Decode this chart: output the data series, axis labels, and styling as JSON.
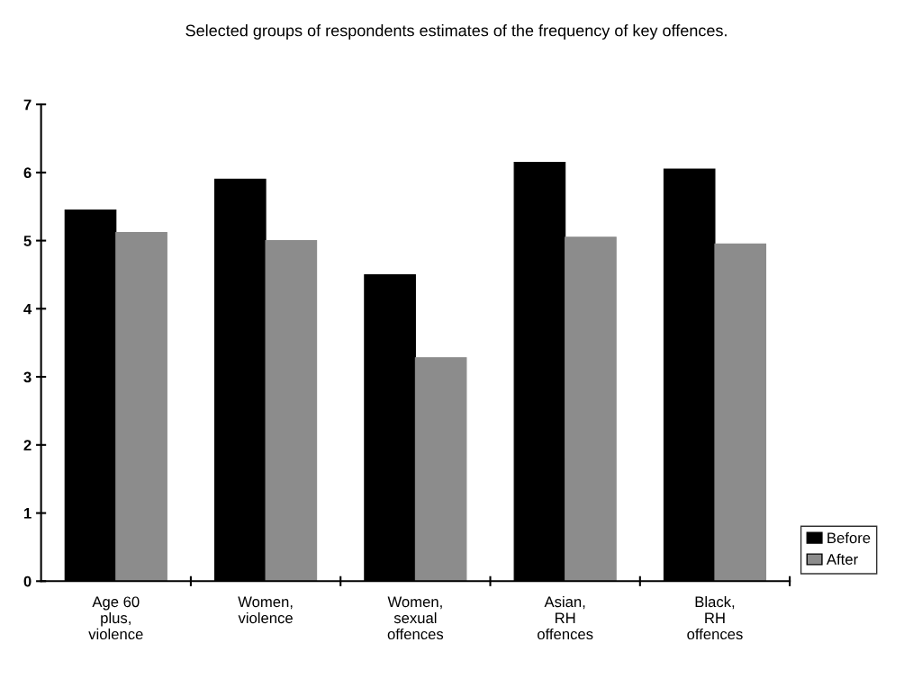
{
  "chart_data": {
    "type": "bar",
    "title": "Selected groups of respondents estimates of the frequency of key offences.",
    "categories": [
      "Age 60\nplus,\nviolence",
      "Women,\nviolence",
      "Women,\nsexual\noffences",
      "Asian,\nRH\noffences",
      "Black,\nRH\noffences"
    ],
    "series": [
      {
        "name": "Before",
        "color": "#000000",
        "values": [
          5.45,
          5.9,
          4.5,
          6.15,
          6.05
        ]
      },
      {
        "name": "After",
        "color": "#8c8c8c",
        "values": [
          5.12,
          5.0,
          3.28,
          5.05,
          4.95
        ]
      }
    ],
    "ylim": [
      0,
      7
    ],
    "yticks": [
      0,
      1,
      2,
      3,
      4,
      5,
      6,
      7
    ],
    "grid": false,
    "legend": "bottom right"
  }
}
